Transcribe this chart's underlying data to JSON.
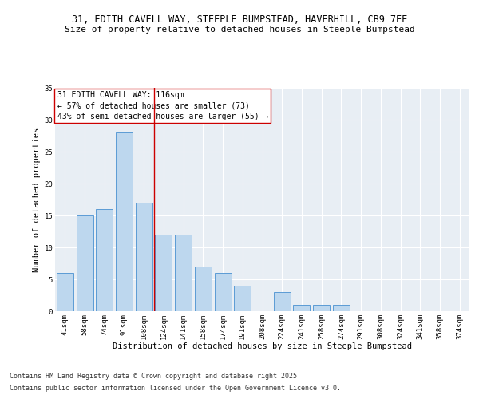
{
  "title1": "31, EDITH CAVELL WAY, STEEPLE BUMPSTEAD, HAVERHILL, CB9 7EE",
  "title2": "Size of property relative to detached houses in Steeple Bumpstead",
  "xlabel": "Distribution of detached houses by size in Steeple Bumpstead",
  "ylabel": "Number of detached properties",
  "categories": [
    "41sqm",
    "58sqm",
    "74sqm",
    "91sqm",
    "108sqm",
    "124sqm",
    "141sqm",
    "158sqm",
    "174sqm",
    "191sqm",
    "208sqm",
    "224sqm",
    "241sqm",
    "258sqm",
    "274sqm",
    "291sqm",
    "308sqm",
    "324sqm",
    "341sqm",
    "358sqm",
    "374sqm"
  ],
  "values": [
    6,
    15,
    16,
    28,
    17,
    12,
    12,
    7,
    6,
    4,
    0,
    3,
    1,
    1,
    1,
    0,
    0,
    0,
    0,
    0,
    0
  ],
  "bar_color": "#BDD7EE",
  "bar_edge_color": "#5B9BD5",
  "vline_x": 4.5,
  "vline_color": "#CC0000",
  "annotation_text": "31 EDITH CAVELL WAY: 116sqm\n← 57% of detached houses are smaller (73)\n43% of semi-detached houses are larger (55) →",
  "annotation_box_color": "#CC0000",
  "ylim": [
    0,
    35
  ],
  "yticks": [
    0,
    5,
    10,
    15,
    20,
    25,
    30,
    35
  ],
  "bg_color": "#E8EEF4",
  "fig_bg_color": "#FFFFFF",
  "footer1": "Contains HM Land Registry data © Crown copyright and database right 2025.",
  "footer2": "Contains public sector information licensed under the Open Government Licence v3.0.",
  "title_fontsize": 8.5,
  "subtitle_fontsize": 8,
  "axis_label_fontsize": 7.5,
  "tick_fontsize": 6.5,
  "annotation_fontsize": 7,
  "footer_fontsize": 6
}
